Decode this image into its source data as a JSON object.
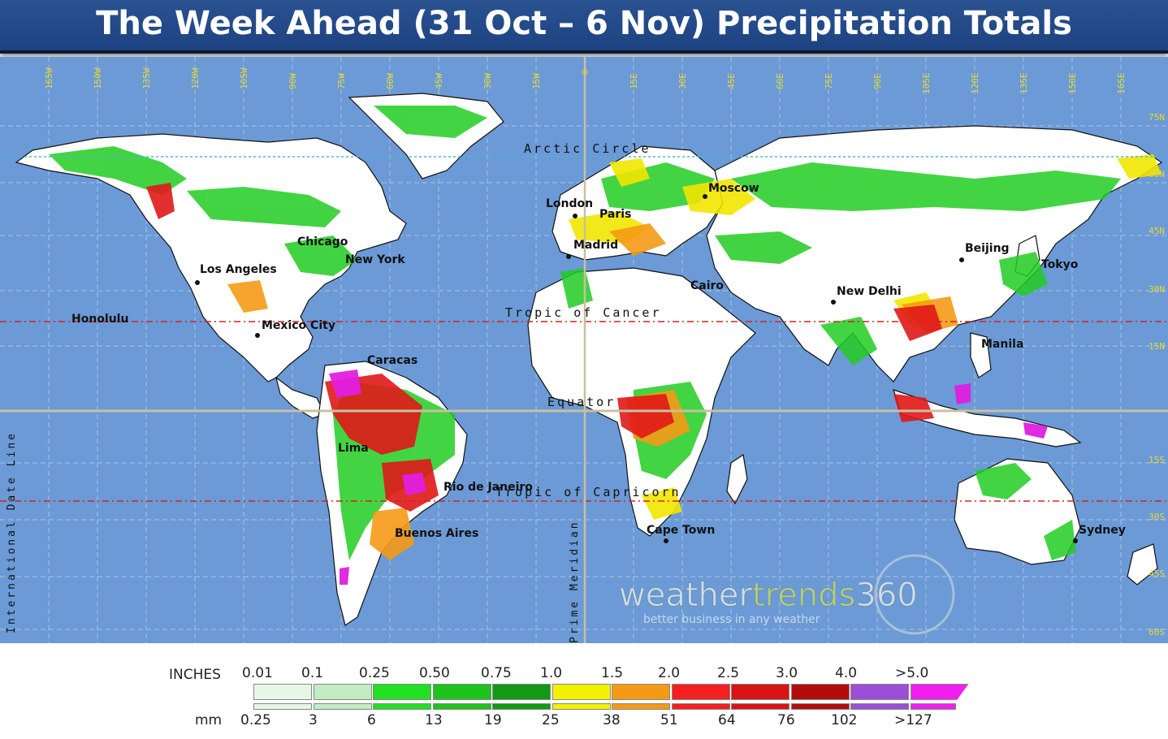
{
  "title": "The Week Ahead (31 Oct – 6 Nov) Precipitation Totals",
  "map": {
    "ocean_color": "#6b9ad6",
    "land_color": "#ffffff",
    "circles": {
      "arctic": "Arctic Circle",
      "cancer": "Tropic of Cancer",
      "equator": "Equator",
      "capricorn": "Tropic of Capricorn",
      "meridian": "Prime Meridian",
      "dateline": "International Date Line"
    },
    "lon_labels": [
      "165W",
      "150W",
      "135W",
      "120W",
      "105W",
      "90W",
      "75W",
      "60W",
      "45W",
      "30W",
      "15W",
      "0",
      "15E",
      "30E",
      "45E",
      "60E",
      "75E",
      "90E",
      "105E",
      "120E",
      "135E",
      "150E",
      "165E"
    ],
    "lat_labels": [
      "75N",
      "60N",
      "45N",
      "30N",
      "15N",
      "15S",
      "30S",
      "45S",
      "60S"
    ],
    "cities": [
      {
        "name": "Moscow"
      },
      {
        "name": "London"
      },
      {
        "name": "Paris"
      },
      {
        "name": "Madrid"
      },
      {
        "name": "Beijing"
      },
      {
        "name": "Tokyo"
      },
      {
        "name": "New Delhi"
      },
      {
        "name": "Manila"
      },
      {
        "name": "Cairo"
      },
      {
        "name": "Chicago"
      },
      {
        "name": "New York"
      },
      {
        "name": "Los Angeles"
      },
      {
        "name": "Honolulu"
      },
      {
        "name": "Mexico City"
      },
      {
        "name": "Caracas"
      },
      {
        "name": "Lima"
      },
      {
        "name": "Rio de Janeiro"
      },
      {
        "name": "Buenos Aires"
      },
      {
        "name": "Cape Town"
      },
      {
        "name": "Sydney"
      }
    ],
    "watermark": {
      "brand_a": "weather",
      "brand_b": "trends",
      "brand_c": "360",
      "tagline": "better business in any weather"
    }
  },
  "legend": {
    "inches_label": "INCHES",
    "mm_label": "mm",
    "inches": [
      "0.01",
      "0.1",
      "0.25",
      "0.50",
      "0.75",
      "1.0",
      "1.5",
      "2.0",
      "2.5",
      "3.0",
      "4.0",
      ">5.0"
    ],
    "mm": [
      "0.25",
      "3",
      "6",
      "13",
      "19",
      "25",
      "38",
      "51",
      "64",
      "76",
      "102",
      ">127"
    ],
    "colors": [
      "#e6f7e6",
      "#c2ecc2",
      "#22e022",
      "#1cc41c",
      "#139913",
      "#f2f200",
      "#f59a16",
      "#f51f1f",
      "#d81414",
      "#b40c0c",
      "#9a4fd6",
      "#f01ff0"
    ]
  }
}
